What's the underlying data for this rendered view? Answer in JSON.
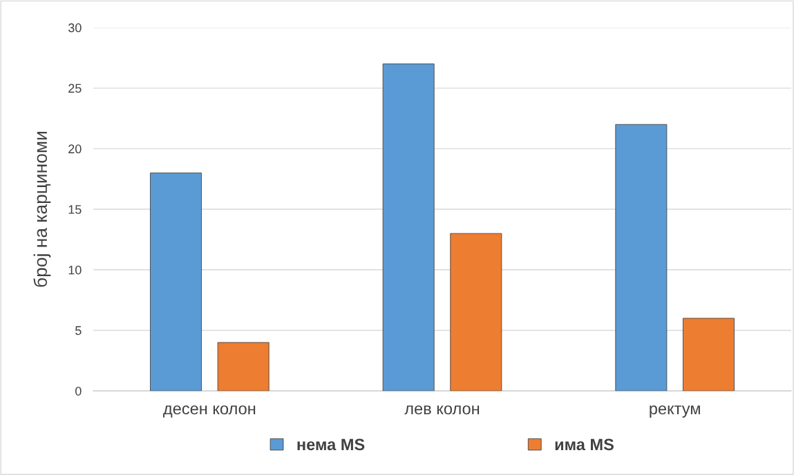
{
  "chart_data": {
    "type": "bar",
    "ylabel": "број на карциноми",
    "categories": [
      "десен колон",
      "лев колон",
      "ректум"
    ],
    "series": [
      {
        "name": "нема MS",
        "color": "#5b9bd5",
        "values": [
          18,
          27,
          22
        ]
      },
      {
        "name": "има MS",
        "color": "#ed7d31",
        "values": [
          4,
          13,
          6
        ]
      }
    ],
    "ylim": [
      0,
      30
    ],
    "yticks": [
      0,
      5,
      10,
      15,
      20,
      25,
      30
    ],
    "grid": "y",
    "legend": "bottom"
  }
}
